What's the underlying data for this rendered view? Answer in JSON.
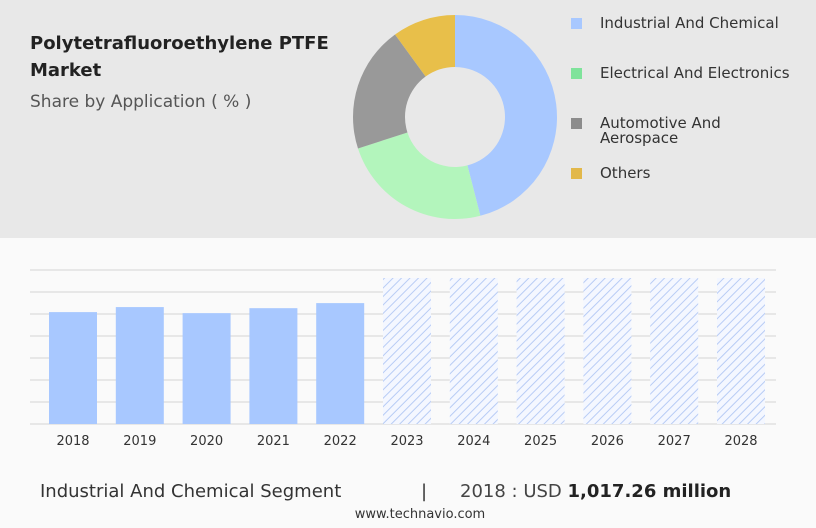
{
  "chart_data": [
    {
      "type": "pie",
      "title": "Polytetrafluoroethylene PTFE Market",
      "subtitle": "Share by Application ( % )",
      "categories": [
        "Industrial And Chemical",
        "Electrical And Electronics",
        "Automotive And Aerospace",
        "Others"
      ],
      "values": [
        46,
        24,
        20,
        10
      ],
      "colors": [
        "#a8c8ff",
        "#b3f5bc",
        "#999999",
        "#e8bf4a"
      ],
      "legend_colors": [
        "#a8c8ff",
        "#7fe39b",
        "#8c8c8c",
        "#e2b84a"
      ]
    },
    {
      "type": "bar",
      "categories": [
        "2018",
        "2019",
        "2020",
        "2021",
        "2022",
        "2023",
        "2024",
        "2025",
        "2026",
        "2027",
        "2028"
      ],
      "values": [
        1017.26,
        1063,
        1008,
        1053,
        1099,
        null,
        null,
        null,
        null,
        null,
        null
      ],
      "color": "#a8c8ff",
      "ylim": [
        0,
        1400
      ],
      "yticks": [
        0,
        200,
        400,
        600,
        800,
        1000,
        1200,
        1400
      ],
      "grid": true
    }
  ],
  "footer": {
    "segment": "Industrial And Chemical Segment",
    "separator": "|",
    "year_label": "2018 : USD",
    "value": "1,017.26 million",
    "website": "www.technavio.com"
  }
}
